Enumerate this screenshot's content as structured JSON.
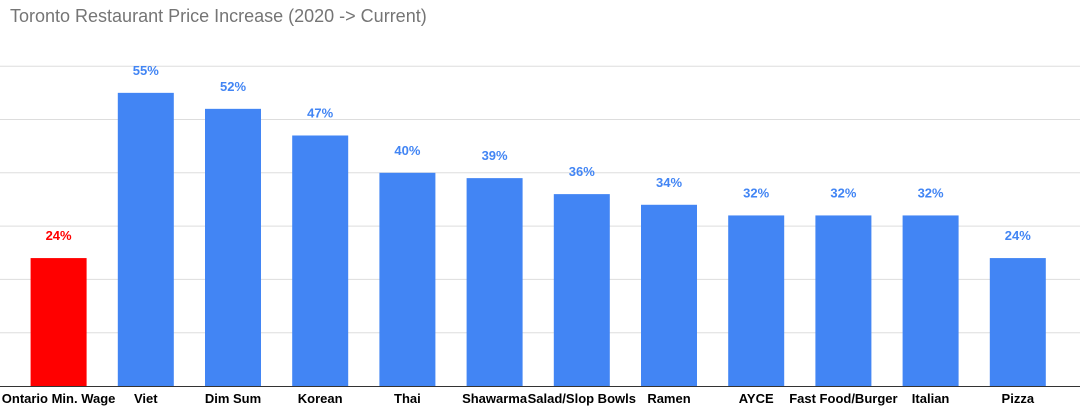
{
  "chart_data": {
    "type": "bar",
    "title": "Toronto Restaurant Price Increase (2020 -> Current)",
    "xlabel": "",
    "ylabel": "",
    "categories": [
      "Ontario Min. Wage",
      "Viet",
      "Dim Sum",
      "Korean",
      "Thai",
      "Shawarma",
      "Salad/Slop Bowls",
      "Ramen",
      "AYCE",
      "Fast Food/Burger",
      "Italian",
      "Pizza"
    ],
    "values": [
      24,
      55,
      52,
      47,
      40,
      39,
      36,
      34,
      32,
      32,
      32,
      24
    ],
    "value_labels": [
      "24%",
      "55%",
      "52%",
      "47%",
      "40%",
      "39%",
      "36%",
      "34%",
      "32%",
      "32%",
      "32%",
      "24%"
    ],
    "ylim": [
      0,
      60
    ],
    "grid": true,
    "legend": "none",
    "colors": {
      "highlight": "#ff0000",
      "bar": "#4285f4",
      "gridline": "#dddddd",
      "axis": "#333333"
    },
    "highlight_index": 0
  }
}
